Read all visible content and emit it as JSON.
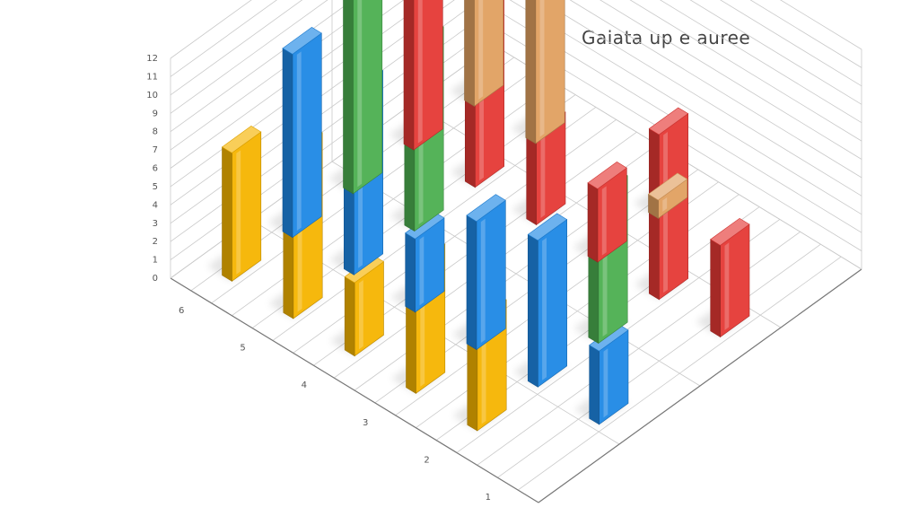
{
  "chart_data": {
    "type": "bar",
    "title": "Gaiata up e auree",
    "subtitle": "",
    "xlabel": "",
    "ylabel": "",
    "depthlabel": "",
    "categories": [
      "1",
      "2",
      "3",
      "4",
      "5",
      "6"
    ],
    "series": [
      {
        "color": "#f5b400",
        "values": [
          null,
          6,
          7,
          4,
          9,
          7
        ]
      },
      {
        "color": "#1e88e5",
        "values": [
          4,
          8,
          7,
          4,
          10,
          10
        ]
      },
      {
        "color": "#4caf50",
        "values": [
          null,
          8,
          null,
          null,
          10,
          11
        ]
      },
      {
        "color": "#e53935",
        "values": [
          5,
          9,
          4,
          5,
          11,
          12
        ]
      },
      {
        "color": "#e0a060",
        "values": [
          null,
          null,
          1,
          null,
          8,
          7
        ]
      }
    ],
    "ylim": [
      0,
      12
    ],
    "grid": true,
    "legend": "none"
  }
}
